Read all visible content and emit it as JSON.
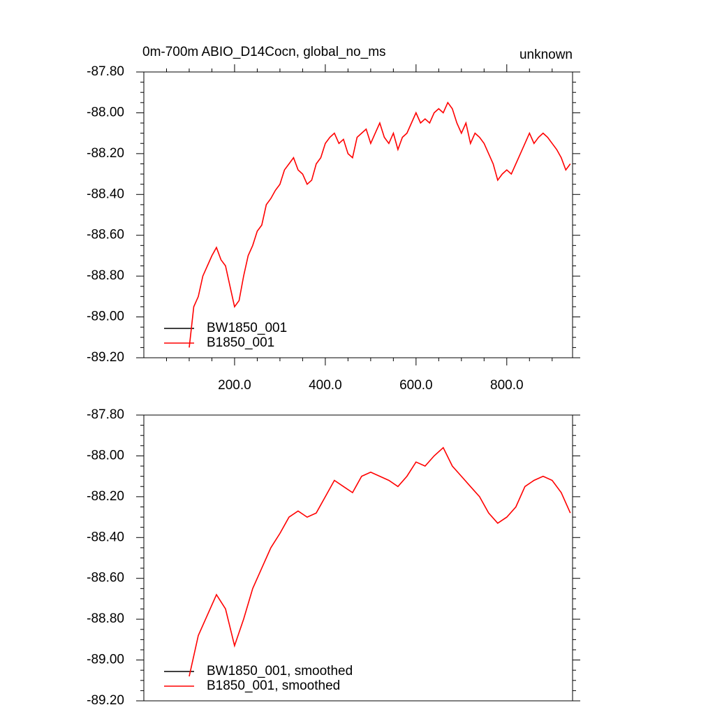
{
  "chart_data": [
    {
      "type": "line",
      "title": "0m-700m ABIO_D14Cocn, global_no_ms",
      "subtitle": "unknown",
      "x": [
        100,
        110,
        120,
        130,
        140,
        150,
        160,
        170,
        180,
        190,
        200,
        210,
        220,
        230,
        240,
        250,
        260,
        270,
        280,
        290,
        300,
        310,
        320,
        330,
        340,
        350,
        360,
        370,
        380,
        390,
        400,
        410,
        420,
        430,
        440,
        450,
        460,
        470,
        480,
        490,
        500,
        510,
        520,
        530,
        540,
        550,
        560,
        570,
        580,
        590,
        600,
        610,
        620,
        630,
        640,
        650,
        660,
        670,
        680,
        690,
        700,
        710,
        720,
        730,
        740,
        750,
        760,
        770,
        780,
        790,
        800,
        810,
        820,
        830,
        840,
        850,
        860,
        870,
        880,
        890,
        900,
        910,
        920,
        930,
        940
      ],
      "series": [
        {
          "name": "BW1850_001",
          "color": "#000000",
          "values": [
            null,
            null,
            null,
            null,
            null,
            null,
            null,
            null,
            null,
            null,
            null,
            null,
            null,
            null,
            null,
            null,
            null,
            null,
            null,
            null,
            null,
            null,
            null,
            null,
            null,
            null,
            null,
            null,
            null,
            null,
            null,
            null,
            null,
            null,
            null,
            null,
            null,
            null,
            null,
            null,
            null,
            null,
            null,
            null,
            null,
            null,
            null,
            null,
            null,
            null,
            null,
            null,
            null,
            null,
            null,
            null,
            null,
            null,
            null,
            null,
            null,
            null,
            null,
            null,
            null,
            null,
            null,
            null,
            null,
            null,
            null,
            null,
            null,
            null,
            null,
            null,
            null,
            null,
            null,
            null,
            null,
            null,
            null,
            null,
            null
          ]
        },
        {
          "name": "B1850_001",
          "color": "#ff0000",
          "values": [
            -89.15,
            -88.95,
            -88.9,
            -88.8,
            -88.75,
            -88.7,
            -88.66,
            -88.72,
            -88.75,
            -88.85,
            -88.95,
            -88.92,
            -88.8,
            -88.7,
            -88.65,
            -88.58,
            -88.55,
            -88.45,
            -88.42,
            -88.38,
            -88.35,
            -88.28,
            -88.25,
            -88.22,
            -88.28,
            -88.3,
            -88.35,
            -88.33,
            -88.25,
            -88.22,
            -88.15,
            -88.12,
            -88.1,
            -88.15,
            -88.13,
            -88.2,
            -88.22,
            -88.12,
            -88.1,
            -88.08,
            -88.15,
            -88.1,
            -88.05,
            -88.12,
            -88.15,
            -88.1,
            -88.18,
            -88.12,
            -88.1,
            -88.05,
            -88.0,
            -88.05,
            -88.03,
            -88.05,
            -88.0,
            -87.98,
            -88.0,
            -87.95,
            -87.98,
            -88.05,
            -88.1,
            -88.05,
            -88.15,
            -88.1,
            -88.12,
            -88.15,
            -88.2,
            -88.25,
            -88.33,
            -88.3,
            -88.28,
            -88.3,
            -88.25,
            -88.2,
            -88.15,
            -88.1,
            -88.15,
            -88.12,
            -88.1,
            -88.12,
            -88.15,
            -88.18,
            -88.22,
            -88.28,
            -88.25
          ]
        }
      ],
      "xlim": [
        0,
        945
      ],
      "xticks": [
        {
          "value": 200,
          "label": "200.0"
        },
        {
          "value": 400,
          "label": "400.0"
        },
        {
          "value": 600,
          "label": "600.0"
        },
        {
          "value": 800,
          "label": "800.0"
        }
      ],
      "ylim": [
        -89.2,
        -87.8
      ],
      "yticks": [
        {
          "value": -89.2,
          "label": "-89.20"
        },
        {
          "value": -89.0,
          "label": "-89.00"
        },
        {
          "value": -88.8,
          "label": "-88.80"
        },
        {
          "value": -88.6,
          "label": "-88.60"
        },
        {
          "value": -88.4,
          "label": "-88.40"
        },
        {
          "value": -88.2,
          "label": "-88.20"
        },
        {
          "value": -88.0,
          "label": "-88.00"
        },
        {
          "value": -87.8,
          "label": "-87.80"
        }
      ],
      "legend": "lower left"
    },
    {
      "type": "line",
      "x": [
        100,
        120,
        140,
        160,
        180,
        200,
        220,
        240,
        260,
        280,
        300,
        320,
        340,
        360,
        380,
        400,
        420,
        440,
        460,
        480,
        500,
        520,
        540,
        560,
        580,
        600,
        620,
        640,
        660,
        680,
        700,
        720,
        740,
        760,
        780,
        800,
        820,
        840,
        860,
        880,
        900,
        920,
        940
      ],
      "series": [
        {
          "name": "BW1850_001, smoothed",
          "color": "#000000",
          "values": [
            null,
            null,
            null,
            null,
            null,
            null,
            null,
            null,
            null,
            null,
            null,
            null,
            null,
            null,
            null,
            null,
            null,
            null,
            null,
            null,
            null,
            null,
            null,
            null,
            null,
            null,
            null,
            null,
            null,
            null,
            null,
            null,
            null,
            null,
            null,
            null,
            null,
            null,
            null,
            null,
            null,
            null,
            null
          ]
        },
        {
          "name": "B1850_001, smoothed",
          "color": "#ff0000",
          "values": [
            -89.08,
            -88.88,
            -88.78,
            -88.68,
            -88.75,
            -88.93,
            -88.8,
            -88.65,
            -88.55,
            -88.45,
            -88.38,
            -88.3,
            -88.27,
            -88.3,
            -88.28,
            -88.2,
            -88.12,
            -88.15,
            -88.18,
            -88.1,
            -88.08,
            -88.1,
            -88.12,
            -88.15,
            -88.1,
            -88.03,
            -88.05,
            -88.0,
            -87.96,
            -88.05,
            -88.1,
            -88.15,
            -88.2,
            -88.28,
            -88.33,
            -88.3,
            -88.25,
            -88.15,
            -88.12,
            -88.1,
            -88.12,
            -88.18,
            -88.28
          ]
        }
      ],
      "xlim": [
        0,
        945
      ],
      "ylim": [
        -89.2,
        -87.8
      ],
      "yticks": [
        {
          "value": -89.2,
          "label": "-89.20"
        },
        {
          "value": -89.0,
          "label": "-89.00"
        },
        {
          "value": -88.8,
          "label": "-88.80"
        },
        {
          "value": -88.6,
          "label": "-88.60"
        },
        {
          "value": -88.4,
          "label": "-88.40"
        },
        {
          "value": -88.2,
          "label": "-88.20"
        },
        {
          "value": -88.0,
          "label": "-88.00"
        },
        {
          "value": -87.8,
          "label": "-87.80"
        }
      ],
      "legend": "lower left"
    }
  ]
}
